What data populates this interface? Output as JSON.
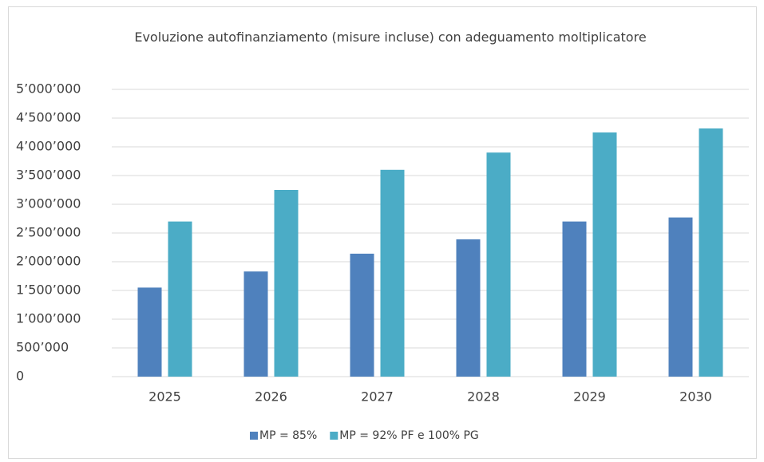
{
  "chart_data": {
    "type": "bar",
    "title": "Evoluzione autofinanziamento (misure incluse) con adeguamento moltiplicatore",
    "categories": [
      "2025",
      "2026",
      "2027",
      "2028",
      "2029",
      "2030"
    ],
    "series": [
      {
        "name": "MP = 85%",
        "color": "#4f81bd",
        "values": [
          1550000,
          1830000,
          2140000,
          2390000,
          2700000,
          2770000
        ]
      },
      {
        "name": "MP = 92% PF e 100% PG",
        "color": "#4bacc6",
        "values": [
          2700000,
          3250000,
          3600000,
          3900000,
          4250000,
          4320000
        ]
      }
    ],
    "ylim": [
      0,
      5000000
    ],
    "yticks": [
      0,
      {
        "value": 500000,
        "label": "500’000"
      },
      {
        "value": 1000000,
        "label": "1’000’000"
      },
      {
        "value": 1500000,
        "label": "1’500’000"
      },
      {
        "value": 2000000,
        "label": "2’000’000"
      },
      {
        "value": 2500000,
        "label": "2’500’000"
      },
      {
        "value": 3000000,
        "label": "3’000’000"
      },
      {
        "value": 3500000,
        "label": "3’500’000"
      },
      {
        "value": 4000000,
        "label": "4’000’000"
      },
      {
        "value": 4500000,
        "label": "4’500’000"
      },
      {
        "value": 5000000,
        "label": "5’000’000"
      }
    ],
    "grid": true,
    "legend": "bottom"
  }
}
